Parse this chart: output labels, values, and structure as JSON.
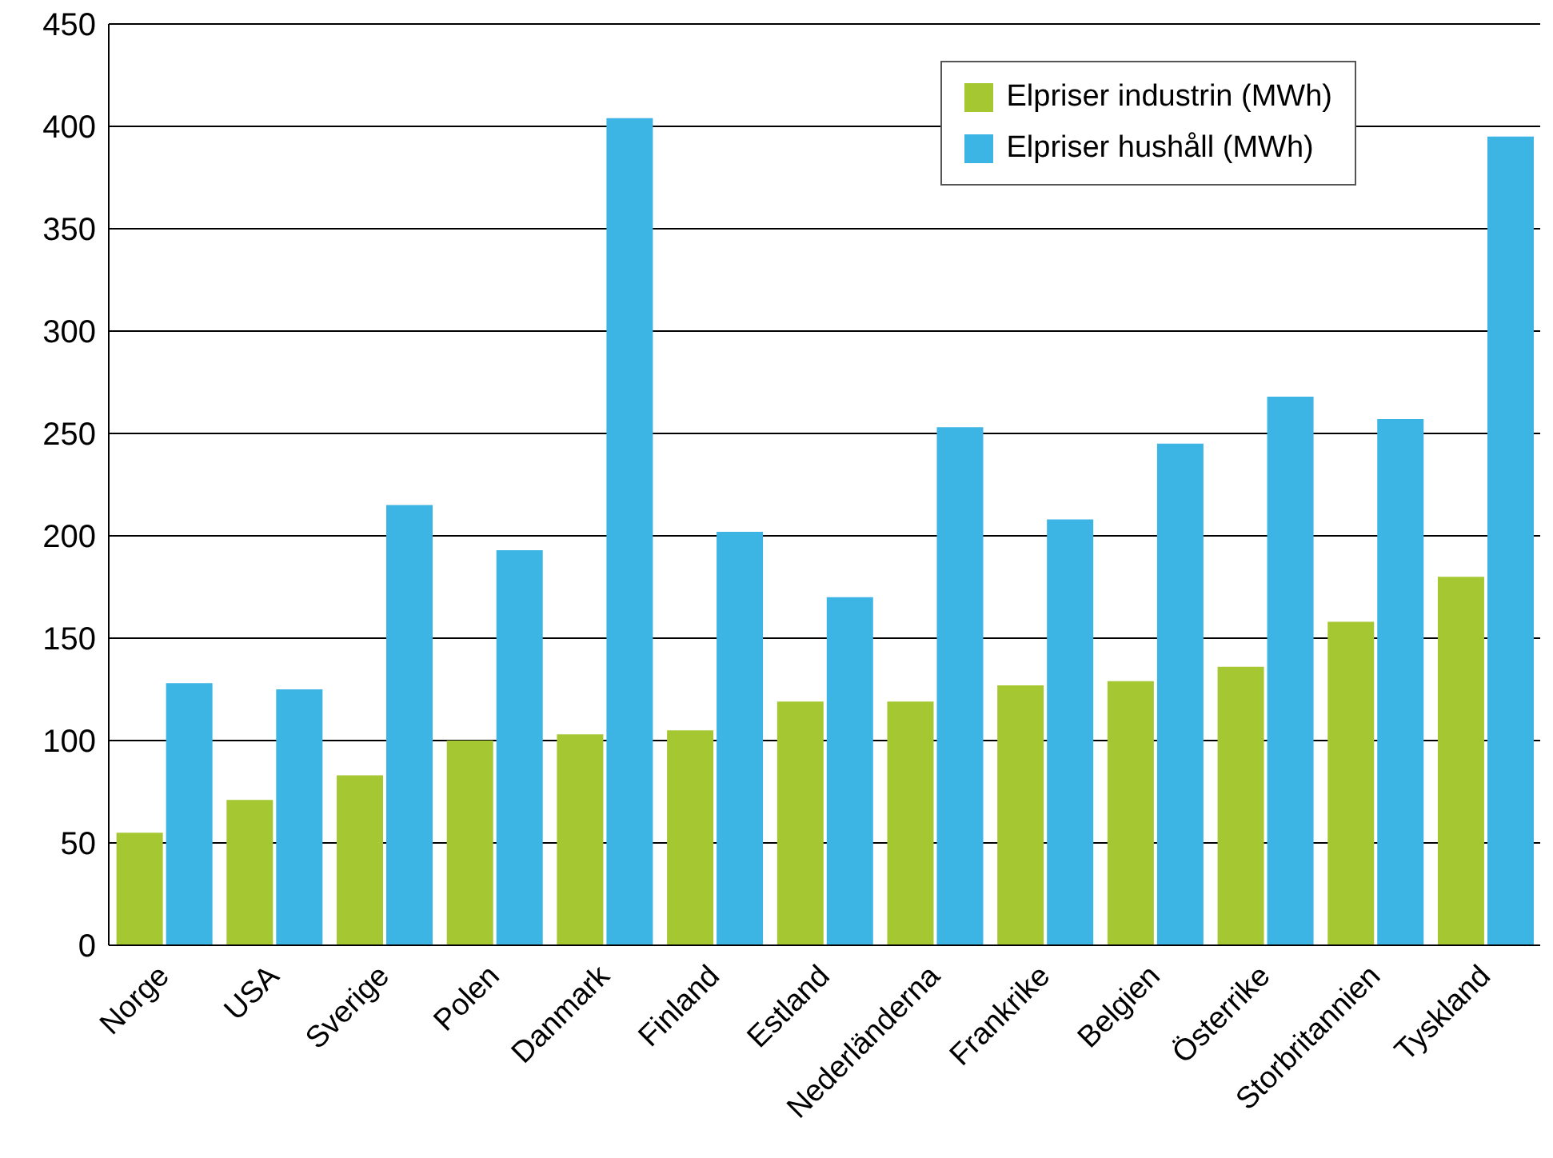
{
  "chart_data": {
    "type": "bar",
    "categories": [
      "Norge",
      "USA",
      "Sverige",
      "Polen",
      "Danmark",
      "Finland",
      "Estland",
      "Nederländerna",
      "Frankrike",
      "Belgien",
      "Österrike",
      "Storbritannien",
      "Tyskland"
    ],
    "series": [
      {
        "name": "Elpriser industrin (MWh)",
        "color": "#a5c832",
        "values": [
          55,
          71,
          83,
          100,
          103,
          105,
          119,
          119,
          127,
          129,
          136,
          158,
          180
        ]
      },
      {
        "name": "Elpriser hushåll (MWh)",
        "color": "#3cb4e4",
        "values": [
          128,
          125,
          215,
          193,
          404,
          202,
          170,
          253,
          208,
          245,
          268,
          257,
          395
        ]
      }
    ],
    "ylim": [
      0,
      450
    ],
    "yticks": [
      0,
      50,
      100,
      150,
      200,
      250,
      300,
      350,
      400,
      450
    ],
    "grid": "y",
    "legend": "top right"
  }
}
